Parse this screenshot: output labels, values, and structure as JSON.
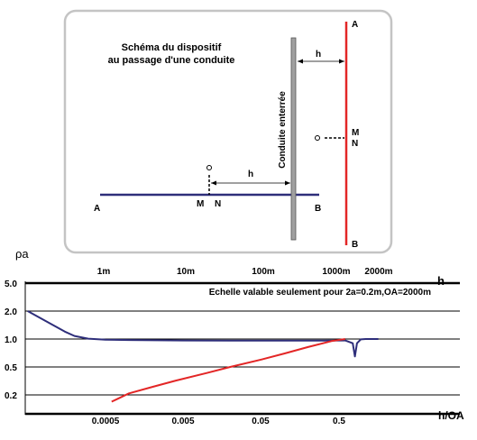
{
  "schema": {
    "title_line1": "Schéma du dispositif",
    "title_line2": "au passage d'une conduite",
    "pipe_label": "Conduite enterrée",
    "h_label": "h",
    "labels": {
      "A_left": "A",
      "B_bottom_line": "B",
      "A_top": "A",
      "B_bottom": "B",
      "M_bottom": "M",
      "N_bottom": "N",
      "M_right": "M",
      "N_right": "N"
    },
    "colors": {
      "blue_line": "#2e2e7a",
      "red_line": "#e32626",
      "pipe": "#a0a0a0"
    }
  },
  "chart_data": {
    "type": "line",
    "ylabel": "ρa",
    "xlabel": "h/OA",
    "top_axis_label": "h",
    "note": "Echelle valable seulement pour 2a=0.2m,OA=2000m",
    "y_ticks": [
      "5.0",
      "2.0",
      "1.0",
      "0.5",
      "0.2"
    ],
    "x_ticks_bottom": [
      "0.0005",
      "0.005",
      "0.05",
      "0.5"
    ],
    "x_ticks_top": [
      "1m",
      "10m",
      "100m",
      "1000m",
      "2000m"
    ],
    "x_log": true,
    "y_log": true,
    "grid": true,
    "series": [
      {
        "color": "#2e2e7a",
        "points": [
          [
            5e-05,
            2.0
          ],
          [
            0.0001,
            1.45
          ],
          [
            0.00015,
            1.2
          ],
          [
            0.0002,
            1.08
          ],
          [
            0.0003,
            1.01
          ],
          [
            0.0005,
            0.985
          ],
          [
            0.001,
            0.975
          ],
          [
            0.005,
            0.965
          ],
          [
            0.05,
            0.96
          ],
          [
            0.3,
            0.96
          ],
          [
            0.6,
            0.965
          ],
          [
            0.75,
            0.9
          ],
          [
            0.8,
            0.65
          ],
          [
            0.85,
            0.9
          ],
          [
            0.95,
            0.99
          ],
          [
            1.1,
            1.0
          ],
          [
            1.6,
            1.0
          ]
        ]
      },
      {
        "color": "#e32626",
        "points": [
          [
            0.0006,
            0.16
          ],
          [
            0.001,
            0.21
          ],
          [
            0.002,
            0.26
          ],
          [
            0.004,
            0.32
          ],
          [
            0.01,
            0.41
          ],
          [
            0.02,
            0.5
          ],
          [
            0.05,
            0.6
          ],
          [
            0.1,
            0.7
          ],
          [
            0.2,
            0.82
          ],
          [
            0.4,
            0.95
          ],
          [
            0.6,
            1.0
          ]
        ]
      }
    ]
  }
}
